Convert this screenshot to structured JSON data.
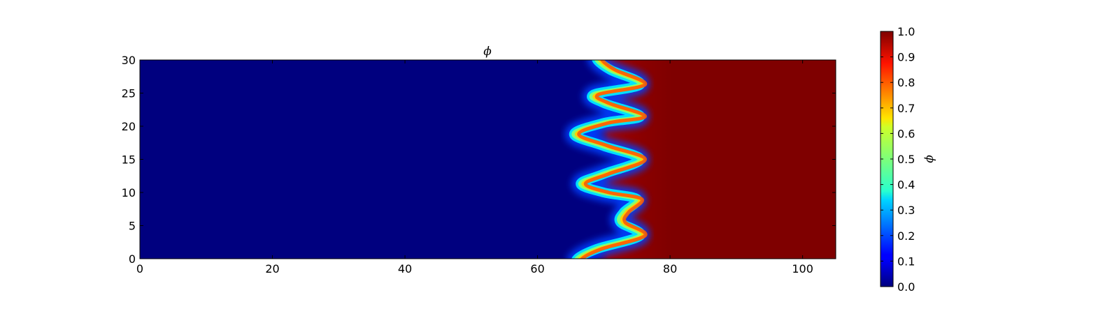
{
  "chart_data": {
    "type": "heatmap",
    "title": "ϕ",
    "colorbar_label": "ϕ",
    "colormap": "jet",
    "xlim": [
      0,
      105
    ],
    "ylim": [
      0,
      30
    ],
    "x_ticks": [
      0,
      20,
      40,
      60,
      80,
      100
    ],
    "y_ticks": [
      0,
      5,
      10,
      15,
      20,
      25,
      30
    ],
    "colorbar_range": [
      0.0,
      1.0
    ],
    "colorbar_ticks": [
      "0.0",
      "0.1",
      "0.2",
      "0.3",
      "0.4",
      "0.5",
      "0.6",
      "0.7",
      "0.8",
      "0.9",
      "1.0"
    ],
    "field": {
      "left_value": 0.0,
      "right_value": 1.0,
      "interface": [
        {
          "y": 0.0,
          "x": 66.0
        },
        {
          "y": 1.5,
          "x": 69.0
        },
        {
          "y": 3.5,
          "x": 75.5
        },
        {
          "y": 5.5,
          "x": 72.5
        },
        {
          "y": 7.0,
          "x": 73.0
        },
        {
          "y": 9.0,
          "x": 75.0
        },
        {
          "y": 10.0,
          "x": 70.0
        },
        {
          "y": 11.3,
          "x": 66.5
        },
        {
          "y": 12.8,
          "x": 70.0
        },
        {
          "y": 15.0,
          "x": 75.5
        },
        {
          "y": 17.0,
          "x": 70.0
        },
        {
          "y": 18.8,
          "x": 65.5
        },
        {
          "y": 20.5,
          "x": 70.0
        },
        {
          "y": 21.5,
          "x": 75.5
        },
        {
          "y": 23.5,
          "x": 70.0
        },
        {
          "y": 24.8,
          "x": 68.5
        },
        {
          "y": 26.3,
          "x": 75.5
        },
        {
          "y": 28.5,
          "x": 71.0
        },
        {
          "y": 30.0,
          "x": 69.0
        }
      ]
    }
  }
}
